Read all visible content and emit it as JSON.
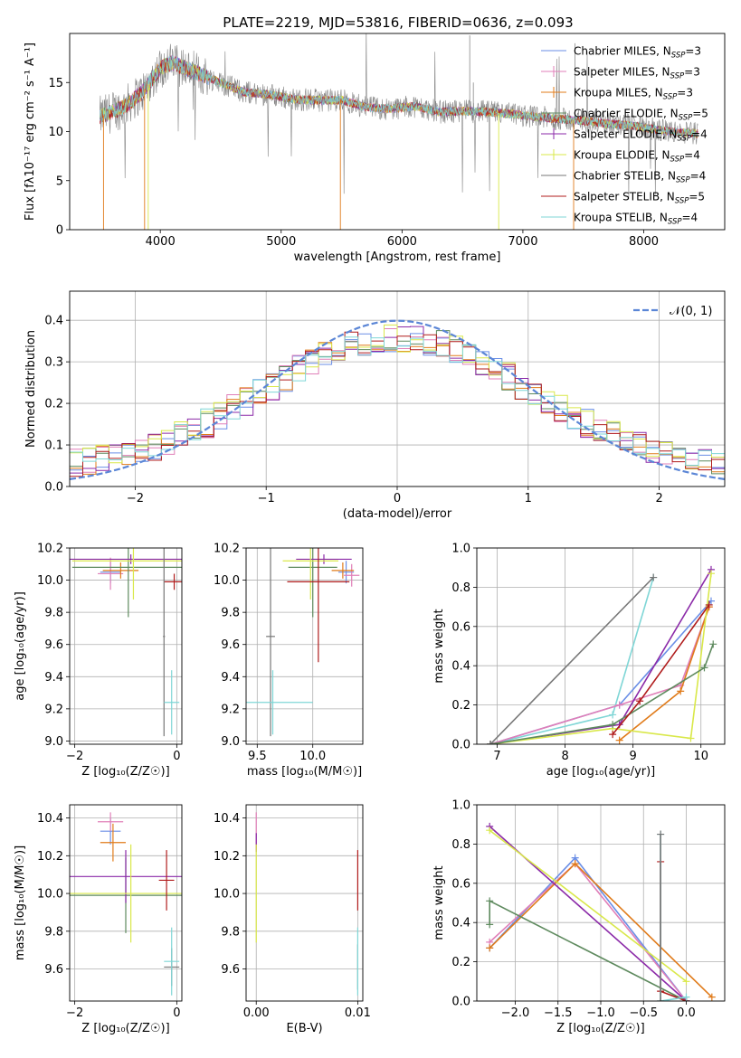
{
  "title": "PLATE=2219, MJD=53816, FIBERID=0636, z=0.093",
  "colors": {
    "chabrier_miles": "#6a8ee6",
    "salpeter_miles": "#e07fb8",
    "kroupa_miles": "#e07b1a",
    "chabrier_elodie": "#5e8a5e",
    "salpeter_elodie": "#8b2aa8",
    "kroupa_elodie": "#d9e84a",
    "chabrier_stelib": "#777777",
    "salpeter_stelib": "#b01c1c",
    "kroupa_stelib": "#7fd6d6",
    "gaussian": "#5b86d6",
    "grid": "#b0b0b0"
  },
  "chart_data": [
    {
      "type": "line",
      "xlabel": "wavelength [Angstrom, rest frame]",
      "ylabel": "Flux [fλ10⁻¹⁷ erg cm⁻² s⁻¹ A⁻¹]",
      "xlim": [
        3250,
        8670
      ],
      "ylim": [
        0,
        20
      ],
      "xticks": [
        "4000",
        "5000",
        "6000",
        "7000",
        "8000"
      ],
      "yticks": [
        "0",
        "5",
        "10",
        "15"
      ],
      "grid": false,
      "legend_position": "top-right",
      "spectrum_anchors": {
        "x": [
          3500,
          3700,
          3850,
          4000,
          4100,
          4300,
          4500,
          4700,
          4900,
          5100,
          5300,
          5500,
          5700,
          5900,
          6100,
          6300,
          6500,
          6700,
          6900,
          7100,
          7300,
          7500,
          7700,
          7900,
          8100,
          8300,
          8450
        ],
        "y": [
          11.5,
          12.5,
          14,
          16.5,
          17,
          16,
          15,
          14,
          13.8,
          13.3,
          13.2,
          13.2,
          12.5,
          12.3,
          12.6,
          12,
          12.1,
          12,
          11.8,
          11.5,
          11.3,
          11.1,
          10.8,
          10.6,
          10.2,
          9.9,
          9.8
        ]
      },
      "series": [
        {
          "name": "Chabrier MILES, N_SSP=3",
          "color_key": "chabrier_miles"
        },
        {
          "name": "Salpeter MILES, N_SSP=3",
          "color_key": "salpeter_miles"
        },
        {
          "name": "Kroupa MILES, N_SSP=3",
          "color_key": "kroupa_miles"
        },
        {
          "name": "Chabrier ELODIE, N_SSP=5",
          "color_key": "chabrier_elodie"
        },
        {
          "name": "Salpeter ELODIE, N_SSP=4",
          "color_key": "salpeter_elodie"
        },
        {
          "name": "Kroupa ELODIE, N_SSP=4",
          "color_key": "kroupa_elodie"
        },
        {
          "name": "Chabrier STELIB, N_SSP=4",
          "color_key": "chabrier_stelib"
        },
        {
          "name": "Salpeter STELIB, N_SSP=5",
          "color_key": "salpeter_stelib"
        },
        {
          "name": "Kroupa STELIB, N_SSP=4",
          "color_key": "kroupa_stelib"
        }
      ],
      "legend_labels": [
        {
          "main": "Chabrier MILES, N",
          "sub": "SSP",
          "tail": "=3"
        },
        {
          "main": "Salpeter MILES, N",
          "sub": "SSP",
          "tail": "=3"
        },
        {
          "main": "Kroupa MILES, N",
          "sub": "SSP",
          "tail": "=3"
        },
        {
          "main": "Chabrier ELODIE, N",
          "sub": "SSP",
          "tail": "=5"
        },
        {
          "main": "Salpeter ELODIE, N",
          "sub": "SSP",
          "tail": "=4"
        },
        {
          "main": "Kroupa ELODIE, N",
          "sub": "SSP",
          "tail": "=4"
        },
        {
          "main": "Chabrier STELIB, N",
          "sub": "SSP",
          "tail": "=4"
        },
        {
          "main": "Salpeter STELIB, N",
          "sub": "SSP",
          "tail": "=5"
        },
        {
          "main": "Kroupa STELIB, N",
          "sub": "SSP",
          "tail": "=4"
        }
      ]
    },
    {
      "type": "line",
      "xlabel": "(data-model)/error",
      "ylabel": "Normed distribution",
      "xlim": [
        -2.5,
        2.5
      ],
      "ylim": [
        0,
        0.47
      ],
      "xticks": [
        "−2",
        "−1",
        "0",
        "1",
        "2"
      ],
      "yticks": [
        "0.0",
        "0.1",
        "0.2",
        "0.3",
        "0.4"
      ],
      "grid": true,
      "legend_position": "top-right",
      "gaussian_label": "𝒩(0, 1)",
      "bin_width": 0.1,
      "series_color_keys": [
        "chabrier_miles",
        "salpeter_miles",
        "kroupa_miles",
        "chabrier_elodie",
        "salpeter_elodie",
        "kroupa_elodie",
        "salpeter_stelib",
        "kroupa_stelib"
      ]
    },
    {
      "type": "scatter",
      "xlabel": "Z [log₁₀(Z/Z☉)]",
      "ylabel": "age [log₁₀(age/yr)]",
      "xlim": [
        -2.1,
        0.1
      ],
      "ylim": [
        8.98,
        10.2
      ],
      "xticks": [
        "−2",
        "0"
      ],
      "yticks": [
        "9.0",
        "9.2",
        "9.4",
        "9.6",
        "9.8",
        "10.0",
        "10.2"
      ],
      "grid": true,
      "points": [
        {
          "color_key": "chabrier_miles",
          "x": -1.3,
          "xerr": 0.2,
          "y": 10.05,
          "yerr": 0.07
        },
        {
          "color_key": "salpeter_miles",
          "x": -1.3,
          "xerr": 0.25,
          "y": 10.04,
          "yerr": 0.1
        },
        {
          "color_key": "kroupa_miles",
          "x": -1.1,
          "xerr": 0.35,
          "y": 10.06,
          "yerr": 0.05
        },
        {
          "color_key": "chabrier_elodie",
          "x": -0.95,
          "xerr": 1.1,
          "y": 10.08,
          "yerr": 0.31
        },
        {
          "color_key": "salpeter_elodie",
          "x": -0.9,
          "xerr": 1.2,
          "y": 10.13,
          "yerr": 0.03
        },
        {
          "color_key": "kroupa_elodie",
          "x": -0.85,
          "xerr": 1.2,
          "y": 10.12,
          "yerr": 0.24
        },
        {
          "color_key": "salpeter_stelib",
          "x": -0.05,
          "xerr": 0.2,
          "y": 9.99,
          "yerr": 0.05
        },
        {
          "color_key": "chabrier_stelib",
          "x": -0.25,
          "xerr": 0.02,
          "y": 9.65,
          "yerr": 0.62
        },
        {
          "color_key": "kroupa_stelib",
          "x": -0.1,
          "xerr": 0.15,
          "y": 9.24,
          "yerr": 0.2
        }
      ]
    },
    {
      "type": "scatter",
      "xlabel": "mass [log₁₀(M/M☉)]",
      "ylabel": "",
      "xlim": [
        9.4,
        10.45
      ],
      "ylim": [
        8.98,
        10.2
      ],
      "xticks": [
        "9.5",
        "10.0"
      ],
      "yticks": [
        "9.0",
        "9.2",
        "9.4",
        "9.6",
        "9.8",
        "10.0",
        "10.2"
      ],
      "grid": true,
      "points": [
        {
          "color_key": "chabrier_miles",
          "x": 10.3,
          "xerr": 0.07,
          "y": 10.05,
          "yerr": 0.07
        },
        {
          "color_key": "salpeter_miles",
          "x": 10.35,
          "xerr": 0.07,
          "y": 10.03,
          "yerr": 0.07
        },
        {
          "color_key": "kroupa_miles",
          "x": 10.27,
          "xerr": 0.1,
          "y": 10.06,
          "yerr": 0.05
        },
        {
          "color_key": "chabrier_elodie",
          "x": 10.0,
          "xerr": 0.22,
          "y": 10.08,
          "yerr": 0.31
        },
        {
          "color_key": "salpeter_elodie",
          "x": 10.1,
          "xerr": 0.25,
          "y": 10.13,
          "yerr": 0.03
        },
        {
          "color_key": "kroupa_elodie",
          "x": 9.98,
          "xerr": 0.25,
          "y": 10.12,
          "yerr": 0.24
        },
        {
          "color_key": "salpeter_stelib",
          "x": 10.05,
          "xerr": 0.28,
          "y": 9.99,
          "yerr": 0.5
        },
        {
          "color_key": "chabrier_stelib",
          "x": 9.62,
          "xerr": 0.04,
          "y": 9.65,
          "yerr": 0.62
        },
        {
          "color_key": "kroupa_stelib",
          "x": 9.64,
          "xerr": 0.36,
          "y": 9.24,
          "yerr": 0.2
        }
      ]
    },
    {
      "type": "line",
      "xlabel": "age [log₁₀(age/yr)]",
      "ylabel": "mass weight",
      "xlim": [
        6.7,
        10.35
      ],
      "ylim": [
        0,
        1
      ],
      "xticks": [
        "7",
        "8",
        "9",
        "10"
      ],
      "yticks": [
        "0.0",
        "0.2",
        "0.4",
        "0.6",
        "0.8",
        "1.0"
      ],
      "grid": true,
      "series": [
        {
          "color_key": "kroupa_stelib",
          "x": [
            6.9,
            8.7,
            9.3
          ],
          "y": [
            0.0,
            0.15,
            0.85
          ]
        },
        {
          "color_key": "chabrier_miles",
          "x": [
            6.9,
            8.8,
            10.15
          ],
          "y": [
            0.0,
            0.2,
            0.73
          ]
        },
        {
          "color_key": "salpeter_miles",
          "x": [
            6.9,
            8.8,
            9.7,
            10.12
          ],
          "y": [
            0.0,
            0.2,
            0.3,
            0.7
          ]
        },
        {
          "color_key": "kroupa_miles",
          "x": [
            8.8,
            9.7,
            10.12
          ],
          "y": [
            0.02,
            0.27,
            0.7
          ]
        },
        {
          "color_key": "salpeter_elodie",
          "x": [
            6.9,
            8.8,
            10.15
          ],
          "y": [
            0.0,
            0.1,
            0.89
          ]
        },
        {
          "color_key": "kroupa_elodie",
          "x": [
            6.9,
            8.7,
            9.85,
            10.15
          ],
          "y": [
            0.0,
            0.08,
            0.03,
            0.87
          ]
        },
        {
          "color_key": "chabrier_elodie",
          "x": [
            6.9,
            8.7,
            10.05,
            10.18
          ],
          "y": [
            0.0,
            0.1,
            0.39,
            0.51
          ]
        },
        {
          "color_key": "salpeter_stelib",
          "x": [
            8.7,
            9.1,
            10.12
          ],
          "y": [
            0.05,
            0.22,
            0.71
          ]
        },
        {
          "color_key": "chabrier_stelib",
          "x": [
            6.9,
            9.3
          ],
          "y": [
            0.0,
            0.85
          ]
        }
      ]
    },
    {
      "type": "scatter",
      "xlabel": "Z [log₁₀(Z/Z☉)]",
      "ylabel": "mass [log₁₀(M/M☉)]",
      "xlim": [
        -2.1,
        0.1
      ],
      "ylim": [
        9.43,
        10.47
      ],
      "xticks": [
        "−2",
        "0"
      ],
      "yticks": [
        "9.6",
        "9.8",
        "10.0",
        "10.2",
        "10.4"
      ],
      "grid": true,
      "points": [
        {
          "color_key": "chabrier_miles",
          "x": -1.3,
          "xerr": 0.2,
          "y": 10.33,
          "yerr": 0.07
        },
        {
          "color_key": "salpeter_miles",
          "x": -1.3,
          "xerr": 0.25,
          "y": 10.38,
          "yerr": 0.05
        },
        {
          "color_key": "kroupa_miles",
          "x": -1.25,
          "xerr": 0.25,
          "y": 10.27,
          "yerr": 0.1
        },
        {
          "color_key": "chabrier_elodie",
          "x": -1.0,
          "xerr": 1.1,
          "y": 9.99,
          "yerr": 0.2
        },
        {
          "color_key": "salpeter_elodie",
          "x": -1.0,
          "xerr": 1.1,
          "y": 10.09,
          "yerr": 0.14
        },
        {
          "color_key": "kroupa_elodie",
          "x": -0.9,
          "xerr": 1.2,
          "y": 10.0,
          "yerr": 0.26
        },
        {
          "color_key": "salpeter_stelib",
          "x": -0.2,
          "xerr": 0.15,
          "y": 10.07,
          "yerr": 0.16
        },
        {
          "color_key": "chabrier_stelib",
          "x": -0.1,
          "xerr": 0.15,
          "y": 9.61,
          "yerr": 0.1
        },
        {
          "color_key": "kroupa_stelib",
          "x": -0.1,
          "xerr": 0.15,
          "y": 9.64,
          "yerr": 0.18
        }
      ]
    },
    {
      "type": "scatter",
      "xlabel": "E(B-V)",
      "ylabel": "",
      "xlim": [
        -0.001,
        0.0105
      ],
      "ylim": [
        9.43,
        10.47
      ],
      "xticks": [
        "0.00",
        "0.01"
      ],
      "yticks": [
        "9.6",
        "9.8",
        "10.0",
        "10.2",
        "10.4"
      ],
      "grid": true,
      "points": [
        {
          "color_key": "salpeter_miles",
          "x": 0.0,
          "xerr": 0,
          "y": 10.33,
          "yerr": 0.1
        },
        {
          "color_key": "salpeter_elodie",
          "x": 0.0,
          "xerr": 0,
          "y": 10.27,
          "yerr": 0.05
        },
        {
          "color_key": "kroupa_elodie",
          "x": 0.0,
          "xerr": 0,
          "y": 10.0,
          "yerr": 0.26
        },
        {
          "color_key": "salpeter_stelib",
          "x": 0.01,
          "xerr": 0,
          "y": 10.07,
          "yerr": 0.16
        },
        {
          "color_key": "chabrier_stelib",
          "x": 0.01,
          "xerr": 0,
          "y": 9.61,
          "yerr": 0.12
        },
        {
          "color_key": "kroupa_stelib",
          "x": 0.01,
          "xerr": 0,
          "y": 9.64,
          "yerr": 0.18
        }
      ]
    },
    {
      "type": "line",
      "xlabel": "Z [log₁₀(Z/Z☉)]",
      "ylabel": "mass weight",
      "xlim": [
        -2.45,
        0.45
      ],
      "ylim": [
        0,
        1
      ],
      "xticks": [
        "−2.0",
        "−1.5",
        "−1.0",
        "−0.5",
        "0.0"
      ],
      "yticks": [
        "0.0",
        "0.2",
        "0.4",
        "0.6",
        "0.8",
        "1.0"
      ],
      "grid": true,
      "series": [
        {
          "color_key": "chabrier_miles",
          "x": [
            -2.3,
            -1.3,
            0.0
          ],
          "y": [
            0.27,
            0.73,
            0.0
          ]
        },
        {
          "color_key": "salpeter_miles",
          "x": [
            -2.3,
            -1.3,
            0.0
          ],
          "y": [
            0.3,
            0.7,
            0.0
          ]
        },
        {
          "color_key": "kroupa_miles",
          "x": [
            -2.3,
            -1.3,
            0.3
          ],
          "y": [
            0.27,
            0.7,
            0.02
          ]
        },
        {
          "color_key": "salpeter_elodie",
          "x": [
            -2.3,
            0.0
          ],
          "y": [
            0.89,
            0.0
          ]
        },
        {
          "color_key": "kroupa_elodie",
          "x": [
            -2.3,
            0.0
          ],
          "y": [
            0.87,
            0.1
          ]
        },
        {
          "color_key": "chabrier_elodie",
          "x": [
            -2.3,
            -2.3,
            0.0
          ],
          "y": [
            0.39,
            0.51,
            0.0
          ]
        },
        {
          "color_key": "salpeter_stelib",
          "x": [
            -0.3,
            -0.3,
            0.0
          ],
          "y": [
            0.71,
            0.05,
            0.0
          ]
        },
        {
          "color_key": "kroupa_stelib",
          "x": [
            -0.3,
            -0.3,
            0.0
          ],
          "y": [
            0.85,
            0.0,
            0.02
          ]
        },
        {
          "color_key": "chabrier_stelib",
          "x": [
            -0.3,
            -0.3
          ],
          "y": [
            0.85,
            0.0
          ]
        }
      ]
    }
  ]
}
